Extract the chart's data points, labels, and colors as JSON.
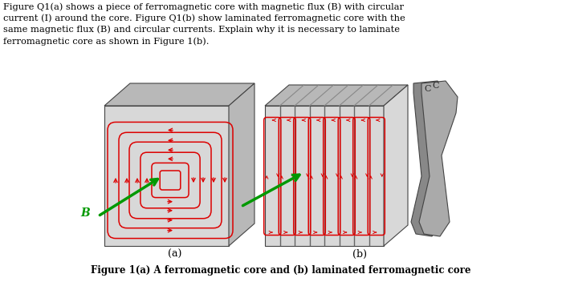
{
  "bg_color": "#ffffff",
  "text_color": "#000000",
  "header_text": "Figure Q1(a) shows a piece of ferromagnetic core with magnetic flux (B) with circular\ncurrent (I) around the core. Figure Q1(b) show laminated ferromagnetic core with the\nsame magnetic flux (B) and circular currents. Explain why it is necessary to laminate\nferromagnetic core as shown in Figure 1(b).",
  "caption_text": "Figure 1(a) A ferromagnetic core and (b) laminated ferromagnetic core",
  "label_a": "(a)",
  "label_b": "(b)",
  "label_B": "B",
  "label_C": "C",
  "core_light": "#d8d8d8",
  "core_mid": "#b8b8b8",
  "core_dark": "#909090",
  "core_darker": "#707070",
  "red_color": "#dd0000",
  "green_color": "#009900"
}
